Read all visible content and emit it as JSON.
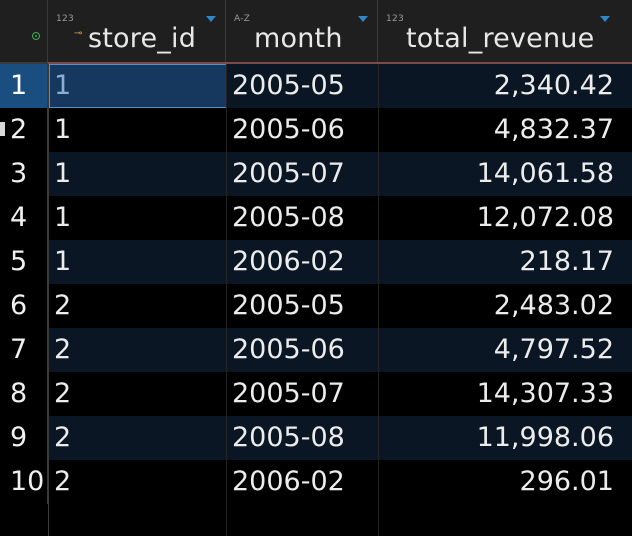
{
  "grid": {
    "columns": [
      {
        "name": "store_id",
        "type_badge": "123",
        "is_key": true
      },
      {
        "name": "month",
        "type_badge": "A-Z",
        "is_key": false
      },
      {
        "name": "total_revenue",
        "type_badge": "123",
        "is_key": false
      }
    ],
    "rows": [
      {
        "num": "1",
        "store_id": "1",
        "month": "2005-05",
        "total_revenue": "2,340.42"
      },
      {
        "num": "2",
        "store_id": "1",
        "month": "2005-06",
        "total_revenue": "4,832.37"
      },
      {
        "num": "3",
        "store_id": "1",
        "month": "2005-07",
        "total_revenue": "14,061.58"
      },
      {
        "num": "4",
        "store_id": "1",
        "month": "2005-08",
        "total_revenue": "12,072.08"
      },
      {
        "num": "5",
        "store_id": "1",
        "month": "2006-02",
        "total_revenue": "218.17"
      },
      {
        "num": "6",
        "store_id": "2",
        "month": "2005-05",
        "total_revenue": "2,483.02"
      },
      {
        "num": "7",
        "store_id": "2",
        "month": "2005-06",
        "total_revenue": "4,797.52"
      },
      {
        "num": "8",
        "store_id": "2",
        "month": "2005-07",
        "total_revenue": "14,307.33"
      },
      {
        "num": "9",
        "store_id": "2",
        "month": "2005-08",
        "total_revenue": "11,998.06"
      },
      {
        "num": "10",
        "store_id": "2",
        "month": "2006-02",
        "total_revenue": "296.01"
      }
    ],
    "selected_row": "1",
    "colors": {
      "background": "#000000",
      "row_alt": "#0b1625",
      "header_bg": "#1f1f1f",
      "selection": "#17385e",
      "sort_arrow": "#2f86c8",
      "key_icon": "#d9a441",
      "gutter_icon": "#3cb04a"
    }
  }
}
